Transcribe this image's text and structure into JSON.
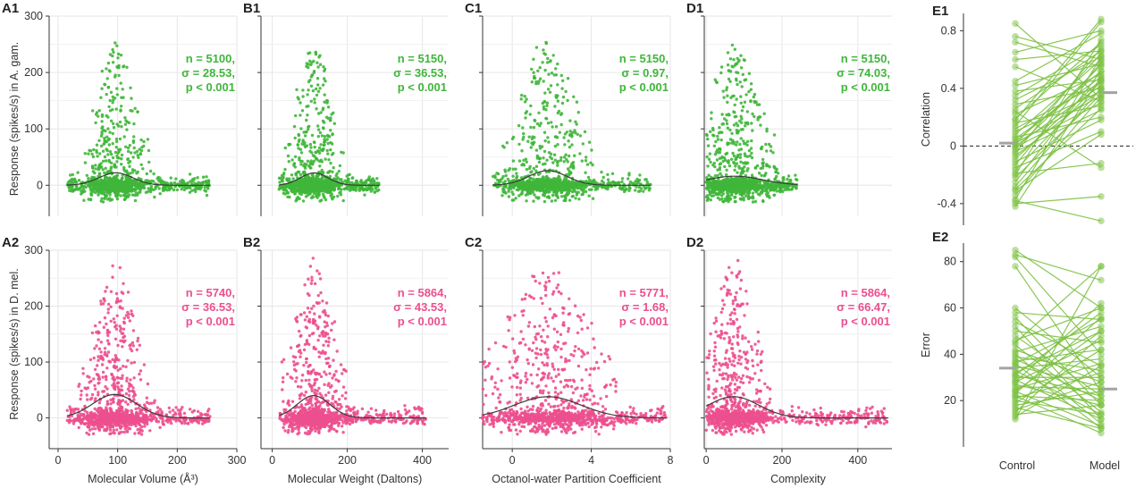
{
  "colors": {
    "green": "#3fb63a",
    "pink": "#ec4f8e",
    "line_green": "#7cc142",
    "curve": "#3a3a3a",
    "grid": "#e6e6e6",
    "median": "#a3a3a3",
    "axis": "#333333"
  },
  "row_labels": {
    "top": "Response (spikes/s) in A. gam.",
    "bottom": "Response (spikes/s) in D. mel."
  },
  "chart_data": [
    {
      "id": "A1",
      "panel_label": "A1",
      "type": "scatter",
      "species": "A. gam.",
      "color": "green",
      "xlabel": "",
      "ylabel": "Response (spikes/s) in A. gam.",
      "xlim": [
        -15,
        300
      ],
      "ylim": [
        -55,
        300
      ],
      "x_ticks": [],
      "y_ticks": [
        0,
        100,
        200,
        300
      ],
      "stats": [
        "n = 5100,",
        "σ = 28.53,",
        "p < 0.001"
      ],
      "cloud": {
        "center": 97,
        "x_sd": 24,
        "x_min": 15,
        "x_max": 255,
        "baseline_weight": 0.55,
        "max_y": 265,
        "count": 1100,
        "seed": 11
      },
      "fit_curve": {
        "peak_x": 97,
        "sigma": 28.53,
        "peak_y": 22
      }
    },
    {
      "id": "B1",
      "panel_label": "B1",
      "type": "scatter",
      "species": "A. gam.",
      "color": "green",
      "xlabel": "",
      "ylabel": "",
      "xlim": [
        -30,
        470
      ],
      "ylim": [
        -55,
        300
      ],
      "x_ticks": [],
      "y_ticks": [
        0,
        100,
        200,
        300
      ],
      "stats": [
        "n = 5150,",
        "σ = 36.53,",
        "p < 0.001"
      ],
      "cloud": {
        "center": 112,
        "x_sd": 35,
        "x_min": 18,
        "x_max": 285,
        "baseline_weight": 0.55,
        "max_y": 265,
        "count": 1100,
        "seed": 12
      },
      "fit_curve": {
        "peak_x": 112,
        "sigma": 36.53,
        "peak_y": 22
      }
    },
    {
      "id": "C1",
      "panel_label": "C1",
      "type": "scatter",
      "species": "A. gam.",
      "color": "green",
      "xlabel": "",
      "ylabel": "",
      "xlim": [
        -1.5,
        8
      ],
      "ylim": [
        -55,
        300
      ],
      "x_ticks": [],
      "y_ticks": [
        0,
        100,
        200,
        300
      ],
      "stats": [
        "n = 5150,",
        "σ = 0.97,",
        "p < 0.001"
      ],
      "cloud": {
        "center": 1.8,
        "x_sd": 1.0,
        "x_min": -1.0,
        "x_max": 7.0,
        "baseline_weight": 0.55,
        "max_y": 270,
        "count": 1100,
        "seed": 13
      },
      "fit_curve": {
        "peak_x": 1.8,
        "sigma": 0.97,
        "peak_y": 26
      }
    },
    {
      "id": "D1",
      "panel_label": "D1",
      "type": "scatter",
      "species": "A. gam.",
      "color": "green",
      "xlabel": "",
      "ylabel": "",
      "xlim": [
        -5,
        490
      ],
      "ylim": [
        -55,
        300
      ],
      "x_ticks": [],
      "y_ticks": [
        0,
        100,
        200,
        300
      ],
      "stats": [
        "n = 5150,",
        "σ = 74.03,",
        "p < 0.001"
      ],
      "cloud": {
        "center": 75,
        "x_sd": 45,
        "x_min": 0,
        "x_max": 240,
        "baseline_weight": 0.55,
        "max_y": 265,
        "count": 1100,
        "seed": 14
      },
      "fit_curve": {
        "peak_x": 75,
        "sigma": 74.03,
        "peak_y": 16
      }
    },
    {
      "id": "A2",
      "panel_label": "A2",
      "type": "scatter",
      "species": "D. mel.",
      "color": "pink",
      "xlabel": "Molecular Volume (Å³)",
      "ylabel": "Response (spikes/s) in D. mel.",
      "xlim": [
        -15,
        300
      ],
      "ylim": [
        -55,
        300
      ],
      "x_ticks": [
        0,
        100,
        200,
        300
      ],
      "y_ticks": [
        0,
        100,
        200,
        300
      ],
      "stats": [
        "n = 5740,",
        "σ = 36.53,",
        "p < 0.001"
      ],
      "cloud": {
        "center": 95,
        "x_sd": 26,
        "x_min": 15,
        "x_max": 255,
        "baseline_weight": 0.45,
        "max_y": 290,
        "count": 1100,
        "seed": 21
      },
      "fit_curve": {
        "peak_x": 95,
        "sigma": 36.53,
        "peak_y": 42
      }
    },
    {
      "id": "B2",
      "panel_label": "B2",
      "type": "scatter",
      "species": "D. mel.",
      "color": "pink",
      "xlabel": "Molecular Weight (Daltons)",
      "ylabel": "",
      "xlim": [
        -30,
        470
      ],
      "ylim": [
        -55,
        300
      ],
      "x_ticks": [
        0,
        200,
        400
      ],
      "y_ticks": [
        0,
        100,
        200,
        300
      ],
      "stats": [
        "n = 5864,",
        "σ = 43.53,",
        "p < 0.001"
      ],
      "cloud": {
        "center": 110,
        "x_sd": 38,
        "x_min": 18,
        "x_max": 410,
        "baseline_weight": 0.45,
        "max_y": 290,
        "count": 1100,
        "seed": 22
      },
      "fit_curve": {
        "peak_x": 110,
        "sigma": 43.53,
        "peak_y": 40
      }
    },
    {
      "id": "C2",
      "panel_label": "C2",
      "type": "scatter",
      "species": "D. mel.",
      "color": "pink",
      "xlabel": "Octanol-water Partition Coefficient",
      "ylabel": "",
      "xlim": [
        -1.5,
        8
      ],
      "ylim": [
        -55,
        300
      ],
      "x_ticks": [
        0,
        4,
        8
      ],
      "y_ticks": [
        0,
        100,
        200,
        300
      ],
      "stats": [
        "n = 5771,",
        "σ = 1.68,",
        "p < 0.001"
      ],
      "cloud": {
        "center": 1.8,
        "x_sd": 1.5,
        "x_min": -1.5,
        "x_max": 7.8,
        "baseline_weight": 0.45,
        "max_y": 290,
        "count": 1100,
        "seed": 23
      },
      "fit_curve": {
        "peak_x": 1.8,
        "sigma": 1.68,
        "peak_y": 38
      }
    },
    {
      "id": "D2",
      "panel_label": "D2",
      "type": "scatter",
      "species": "D. mel.",
      "color": "pink",
      "xlabel": "Complexity",
      "ylabel": "",
      "xlim": [
        -5,
        490
      ],
      "ylim": [
        -55,
        300
      ],
      "x_ticks": [
        0,
        200,
        400
      ],
      "y_ticks": [
        0,
        100,
        200,
        300
      ],
      "stats": [
        "n = 5864,",
        "σ = 66.47,",
        "p < 0.001"
      ],
      "cloud": {
        "center": 72,
        "x_sd": 42,
        "x_min": 0,
        "x_max": 480,
        "baseline_weight": 0.45,
        "max_y": 290,
        "count": 1100,
        "seed": 24
      },
      "fit_curve": {
        "peak_x": 72,
        "sigma": 66.47,
        "peak_y": 38
      }
    },
    {
      "id": "E1",
      "panel_label": "E1",
      "type": "paired_line",
      "ylabel": "Correlation",
      "categories": [
        "Control",
        "Model"
      ],
      "ylim": [
        -0.55,
        0.92
      ],
      "y_ticks": [
        -0.4,
        0,
        0.4,
        0.8
      ],
      "y_tick_labels": [
        "-0.4",
        "0",
        "0.4",
        "0.8"
      ],
      "zero_line": true,
      "medians": [
        0.02,
        0.37
      ],
      "pairs": [
        [
          0.85,
          0.33
        ],
        [
          0.76,
          0.6
        ],
        [
          0.72,
          0.55
        ],
        [
          0.65,
          0.8
        ],
        [
          0.55,
          0.31
        ],
        [
          0.42,
          0.57
        ],
        [
          0.38,
          0.46
        ],
        [
          0.35,
          0.7
        ],
        [
          0.32,
          0.62
        ],
        [
          0.29,
          0.4
        ],
        [
          0.26,
          0.66
        ],
        [
          0.22,
          0.5
        ],
        [
          0.19,
          0.72
        ],
        [
          0.16,
          0.28
        ],
        [
          0.14,
          0.86
        ],
        [
          0.12,
          0.44
        ],
        [
          0.1,
          0.38
        ],
        [
          0.08,
          0.6
        ],
        [
          0.06,
          0.2
        ],
        [
          0.05,
          0.48
        ],
        [
          0.03,
          0.52
        ],
        [
          0.02,
          0.35
        ],
        [
          0.01,
          0.64
        ],
        [
          0.0,
          0.42
        ],
        [
          -0.01,
          0.3
        ],
        [
          -0.02,
          0.56
        ],
        [
          -0.04,
          0.25
        ],
        [
          -0.05,
          0.68
        ],
        [
          -0.07,
          0.39
        ],
        [
          -0.09,
          0.46
        ],
        [
          -0.11,
          0.18
        ],
        [
          -0.13,
          0.58
        ],
        [
          -0.15,
          0.1
        ],
        [
          -0.17,
          0.45
        ],
        [
          -0.19,
          -0.12
        ],
        [
          -0.22,
          0.36
        ],
        [
          -0.25,
          0.52
        ],
        [
          -0.28,
          0.4
        ],
        [
          -0.31,
          0.08
        ],
        [
          -0.34,
          0.34
        ],
        [
          -0.37,
          0.62
        ],
        [
          -0.4,
          -0.35
        ],
        [
          -0.42,
          0.48
        ],
        [
          -0.38,
          -0.52
        ],
        [
          -0.3,
          0.26
        ],
        [
          0.45,
          0.78
        ],
        [
          0.6,
          0.66
        ],
        [
          0.24,
          -0.15
        ],
        [
          0.18,
          0.88
        ],
        [
          -0.2,
          0.74
        ]
      ]
    },
    {
      "id": "E2",
      "panel_label": "E2",
      "type": "paired_line",
      "ylabel": "Error",
      "categories": [
        "Control",
        "Model"
      ],
      "ylim": [
        0,
        88
      ],
      "y_ticks": [
        20,
        40,
        60,
        80
      ],
      "y_tick_labels": [
        "20",
        "40",
        "60",
        "80"
      ],
      "zero_line": false,
      "medians": [
        34,
        25
      ],
      "pairs": [
        [
          85,
          60
        ],
        [
          83,
          72
        ],
        [
          82,
          40
        ],
        [
          78,
          24
        ],
        [
          60,
          30
        ],
        [
          58,
          55
        ],
        [
          56,
          18
        ],
        [
          54,
          35
        ],
        [
          52,
          12
        ],
        [
          50,
          45
        ],
        [
          48,
          22
        ],
        [
          46,
          60
        ],
        [
          44,
          15
        ],
        [
          42,
          28
        ],
        [
          41,
          52
        ],
        [
          40,
          10
        ],
        [
          39,
          33
        ],
        [
          38,
          20
        ],
        [
          37,
          42
        ],
        [
          36,
          8
        ],
        [
          35,
          26
        ],
        [
          34,
          38
        ],
        [
          33,
          14
        ],
        [
          32,
          50
        ],
        [
          31,
          22
        ],
        [
          30,
          30
        ],
        [
          29,
          12
        ],
        [
          28,
          46
        ],
        [
          27,
          18
        ],
        [
          26,
          25
        ],
        [
          25,
          36
        ],
        [
          24,
          9
        ],
        [
          23,
          56
        ],
        [
          22,
          20
        ],
        [
          21,
          32
        ],
        [
          20,
          14
        ],
        [
          19,
          42
        ],
        [
          18,
          24
        ],
        [
          17,
          8
        ],
        [
          16,
          28
        ],
        [
          15,
          48
        ],
        [
          14,
          18
        ],
        [
          13,
          35
        ],
        [
          12,
          78
        ],
        [
          28,
          62
        ],
        [
          31,
          58
        ],
        [
          24,
          50
        ],
        [
          36,
          55
        ],
        [
          22,
          6
        ],
        [
          45,
          78
        ]
      ]
    }
  ]
}
